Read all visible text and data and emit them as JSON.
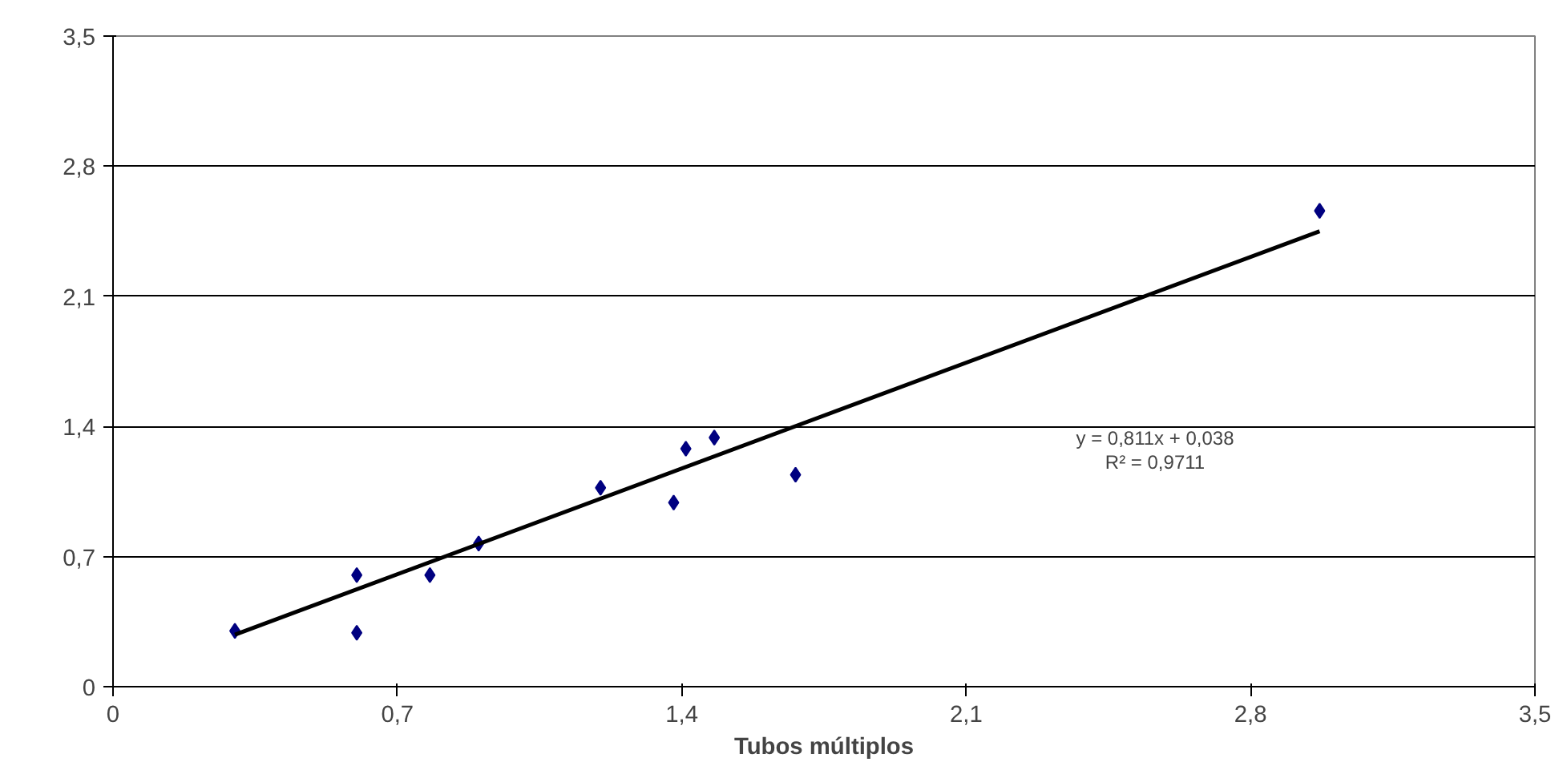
{
  "chart_data": {
    "type": "scatter",
    "xlabel": "Tubos múltiplos",
    "xlim": [
      0,
      3.5
    ],
    "ylim": [
      0,
      3.5
    ],
    "xticks": [
      0,
      {
        "value": 0.7,
        "label": "0,7"
      },
      {
        "value": 1.4,
        "label": "1,4"
      },
      {
        "value": 2.1,
        "label": "2,1"
      },
      {
        "value": 2.8,
        "label": "2,8"
      },
      {
        "value": 3.5,
        "label": "3,5"
      }
    ],
    "yticks": [
      0,
      {
        "value": 0.7,
        "label": "0,7"
      },
      {
        "value": 1.4,
        "label": "1,4"
      },
      {
        "value": 2.1,
        "label": "2,1"
      },
      {
        "value": 2.8,
        "label": "2,8"
      },
      {
        "value": 3.5,
        "label": "3,5"
      }
    ],
    "grid": "y",
    "marker": "diamond",
    "series": [
      {
        "color": "#000080",
        "x": [
          0.3,
          0.6,
          0.6,
          0.78,
          0.9,
          1.2,
          1.38,
          1.41,
          1.48,
          1.68,
          2.97
        ],
        "values": [
          0.3,
          0.6,
          0.29,
          0.6,
          0.77,
          1.07,
          0.99,
          1.28,
          1.34,
          1.14,
          2.56
        ]
      },
      {
        "type": "line",
        "marker": "none",
        "color": "#000000",
        "x": [
          0.3,
          2.97
        ],
        "values": [
          0.28,
          2.45
        ]
      }
    ],
    "annotations": [
      "y = 0,811x + 0,038",
      "R² = 0,9711"
    ]
  }
}
